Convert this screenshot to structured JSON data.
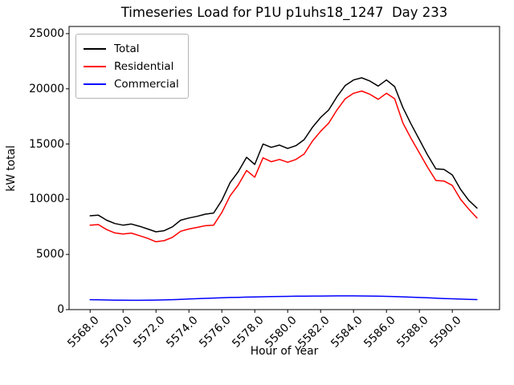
{
  "title": "Timeseries Load for P1U p1uhs18_1247  Day 233",
  "chart_data": {
    "type": "line",
    "title": "Timeseries Load for P1U p1uhs18_1247  Day 233",
    "xlabel": "Hour of Year",
    "ylabel": "kW total",
    "xlim": [
      5566.72,
      5592.87
    ],
    "ylim": [
      0,
      25650
    ],
    "grid": false,
    "legend_position": "upper left",
    "xtick_values": [
      5568,
      5570,
      5572,
      5574,
      5576,
      5578,
      5580,
      5582,
      5584,
      5586,
      5588,
      5590
    ],
    "xtick_labels": [
      "5568.0",
      "5570.0",
      "5572.0",
      "5574.0",
      "5576.0",
      "5578.0",
      "5580.0",
      "5582.0",
      "5584.0",
      "5586.0",
      "5588.0",
      "5590.0"
    ],
    "ytick_values": [
      0,
      5000,
      10000,
      15000,
      20000,
      25000
    ],
    "ytick_labels": [
      "0",
      "5000",
      "10000",
      "15000",
      "20000",
      "25000"
    ],
    "x": [
      5568.0,
      5568.5,
      5569.0,
      5569.5,
      5570.0,
      5570.5,
      5571.0,
      5571.5,
      5572.0,
      5572.5,
      5573.0,
      5573.5,
      5574.0,
      5574.5,
      5575.0,
      5575.5,
      5576.0,
      5576.5,
      5577.0,
      5577.5,
      5578.0,
      5578.5,
      5579.0,
      5579.5,
      5580.0,
      5580.5,
      5581.0,
      5581.5,
      5582.0,
      5582.5,
      5583.0,
      5583.5,
      5584.0,
      5584.5,
      5585.0,
      5585.5,
      5586.0,
      5586.5,
      5587.0,
      5587.5,
      5588.0,
      5588.5,
      5589.0,
      5589.5,
      5590.0,
      5590.5,
      5591.0,
      5591.5
    ],
    "series": [
      {
        "name": "Total",
        "color": "#000000",
        "values": [
          8500,
          8550,
          8100,
          7800,
          7650,
          7750,
          7550,
          7300,
          7050,
          7150,
          7500,
          8100,
          8300,
          8450,
          8650,
          8750,
          9900,
          11500,
          12500,
          13800,
          13150,
          15000,
          14700,
          14900,
          14600,
          14850,
          15400,
          16500,
          17400,
          18100,
          19300,
          20300,
          20800,
          21000,
          20700,
          20250,
          20800,
          20200,
          18300,
          16800,
          15400,
          14000,
          12750,
          12700,
          12200,
          10900,
          9900,
          9200
        ]
      },
      {
        "name": "Residential",
        "color": "#ff0000",
        "values": [
          7650,
          7700,
          7250,
          6950,
          6850,
          6930,
          6700,
          6450,
          6150,
          6250,
          6550,
          7100,
          7300,
          7450,
          7600,
          7650,
          8800,
          10300,
          11300,
          12600,
          12000,
          13750,
          13400,
          13600,
          13350,
          13600,
          14100,
          15250,
          16150,
          16900,
          18100,
          19100,
          19600,
          19800,
          19500,
          19050,
          19600,
          19100,
          16900,
          15500,
          14200,
          12900,
          11700,
          11650,
          11250,
          10000,
          9100,
          8300
        ]
      },
      {
        "name": "Commercial",
        "color": "#0000ff",
        "values": [
          900,
          890,
          875,
          860,
          850,
          845,
          845,
          855,
          865,
          880,
          900,
          930,
          960,
          990,
          1020,
          1045,
          1070,
          1095,
          1115,
          1135,
          1150,
          1165,
          1180,
          1190,
          1200,
          1210,
          1215,
          1225,
          1230,
          1235,
          1240,
          1240,
          1240,
          1235,
          1225,
          1215,
          1200,
          1180,
          1155,
          1125,
          1095,
          1065,
          1035,
          1005,
          980,
          955,
          930,
          910
        ]
      }
    ]
  }
}
